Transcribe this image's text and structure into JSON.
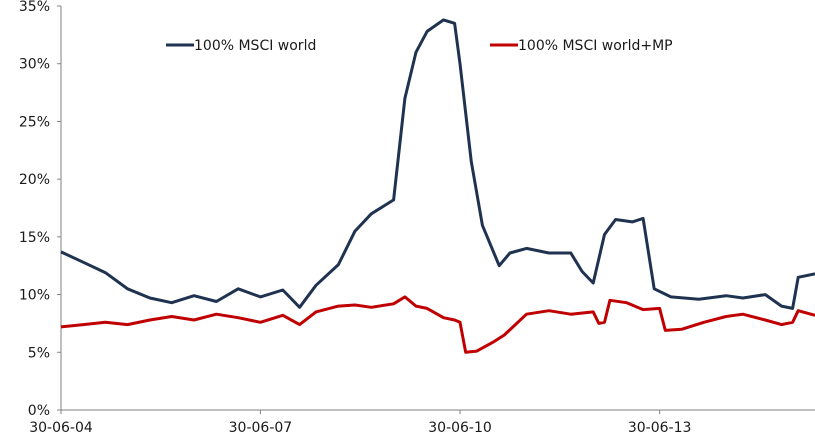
{
  "chart_data": {
    "type": "line",
    "title": "",
    "xlabel": "",
    "ylabel": "",
    "ylim": [
      0,
      35
    ],
    "yticks": [
      "0%",
      "5%",
      "10%",
      "15%",
      "20%",
      "25%",
      "30%",
      "35%"
    ],
    "ytick_values": [
      0,
      5,
      10,
      15,
      20,
      25,
      30,
      35
    ],
    "xticks": [
      "30-06-04",
      "30-06-07",
      "30-06-10",
      "30-06-13"
    ],
    "xtick_values": [
      "2004-06-30",
      "2007-06-30",
      "2010-06-30",
      "2013-06-30"
    ],
    "xlim": [
      "2004-06-30",
      "2015-10-31"
    ],
    "grid": false,
    "legend_position": "top",
    "series": [
      {
        "name": "100% MSCI world",
        "color": "#1f3350",
        "points": [
          [
            "2004-06-30",
            13.7
          ],
          [
            "2004-10-31",
            12.8
          ],
          [
            "2005-02-28",
            11.9
          ],
          [
            "2005-06-30",
            10.5
          ],
          [
            "2005-10-31",
            9.7
          ],
          [
            "2006-02-28",
            9.3
          ],
          [
            "2006-06-30",
            9.9
          ],
          [
            "2006-10-31",
            9.4
          ],
          [
            "2007-02-28",
            10.5
          ],
          [
            "2007-06-30",
            9.8
          ],
          [
            "2007-10-31",
            10.4
          ],
          [
            "2008-01-31",
            8.9
          ],
          [
            "2008-04-30",
            10.8
          ],
          [
            "2008-08-31",
            12.6
          ],
          [
            "2008-11-30",
            15.5
          ],
          [
            "2009-02-28",
            17.0
          ],
          [
            "2009-06-30",
            18.2
          ],
          [
            "2009-08-31",
            27.0
          ],
          [
            "2009-10-31",
            31.0
          ],
          [
            "2009-12-31",
            32.8
          ],
          [
            "2010-03-31",
            33.8
          ],
          [
            "2010-05-31",
            33.5
          ],
          [
            "2010-06-30",
            30.0
          ],
          [
            "2010-08-31",
            21.5
          ],
          [
            "2010-10-31",
            16.0
          ],
          [
            "2011-01-31",
            12.5
          ],
          [
            "2011-03-31",
            13.6
          ],
          [
            "2011-06-30",
            14.0
          ],
          [
            "2011-10-31",
            13.6
          ],
          [
            "2012-02-28",
            13.6
          ],
          [
            "2012-04-30",
            12.0
          ],
          [
            "2012-06-30",
            11.0
          ],
          [
            "2012-08-31",
            15.2
          ],
          [
            "2012-10-31",
            16.5
          ],
          [
            "2013-01-31",
            16.3
          ],
          [
            "2013-03-31",
            16.6
          ],
          [
            "2013-05-31",
            10.5
          ],
          [
            "2013-08-31",
            9.8
          ],
          [
            "2014-01-31",
            9.6
          ],
          [
            "2014-06-30",
            9.9
          ],
          [
            "2014-09-30",
            9.7
          ],
          [
            "2015-01-31",
            10.0
          ],
          [
            "2015-04-30",
            9.0
          ],
          [
            "2015-06-30",
            8.8
          ],
          [
            "2015-07-31",
            11.5
          ],
          [
            "2015-10-31",
            11.8
          ]
        ]
      },
      {
        "name": "100% MSCI world+MP",
        "color": "#c00000",
        "points": [
          [
            "2004-06-30",
            7.2
          ],
          [
            "2004-10-31",
            7.4
          ],
          [
            "2005-02-28",
            7.6
          ],
          [
            "2005-06-30",
            7.4
          ],
          [
            "2005-10-31",
            7.8
          ],
          [
            "2006-02-28",
            8.1
          ],
          [
            "2006-06-30",
            7.8
          ],
          [
            "2006-10-31",
            8.3
          ],
          [
            "2007-02-28",
            8.0
          ],
          [
            "2007-06-30",
            7.6
          ],
          [
            "2007-10-31",
            8.2
          ],
          [
            "2008-01-31",
            7.4
          ],
          [
            "2008-04-30",
            8.5
          ],
          [
            "2008-08-31",
            9.0
          ],
          [
            "2008-11-30",
            9.1
          ],
          [
            "2009-02-28",
            8.9
          ],
          [
            "2009-06-30",
            9.2
          ],
          [
            "2009-08-31",
            9.8
          ],
          [
            "2009-10-31",
            9.0
          ],
          [
            "2009-12-31",
            8.8
          ],
          [
            "2010-03-31",
            8.0
          ],
          [
            "2010-05-31",
            7.8
          ],
          [
            "2010-06-30",
            7.6
          ],
          [
            "2010-07-31",
            5.0
          ],
          [
            "2010-09-30",
            5.1
          ],
          [
            "2010-12-31",
            5.9
          ],
          [
            "2011-02-28",
            6.5
          ],
          [
            "2011-06-30",
            8.3
          ],
          [
            "2011-10-31",
            8.6
          ],
          [
            "2012-02-28",
            8.3
          ],
          [
            "2012-06-30",
            8.5
          ],
          [
            "2012-07-31",
            7.5
          ],
          [
            "2012-08-31",
            7.6
          ],
          [
            "2012-09-30",
            9.5
          ],
          [
            "2012-12-31",
            9.3
          ],
          [
            "2013-03-31",
            8.7
          ],
          [
            "2013-06-30",
            8.8
          ],
          [
            "2013-07-31",
            6.9
          ],
          [
            "2013-10-31",
            7.0
          ],
          [
            "2014-02-28",
            7.6
          ],
          [
            "2014-06-30",
            8.1
          ],
          [
            "2014-09-30",
            8.3
          ],
          [
            "2015-01-31",
            7.8
          ],
          [
            "2015-04-30",
            7.4
          ],
          [
            "2015-06-30",
            7.6
          ],
          [
            "2015-07-31",
            8.6
          ],
          [
            "2015-10-31",
            8.2
          ]
        ]
      }
    ]
  }
}
